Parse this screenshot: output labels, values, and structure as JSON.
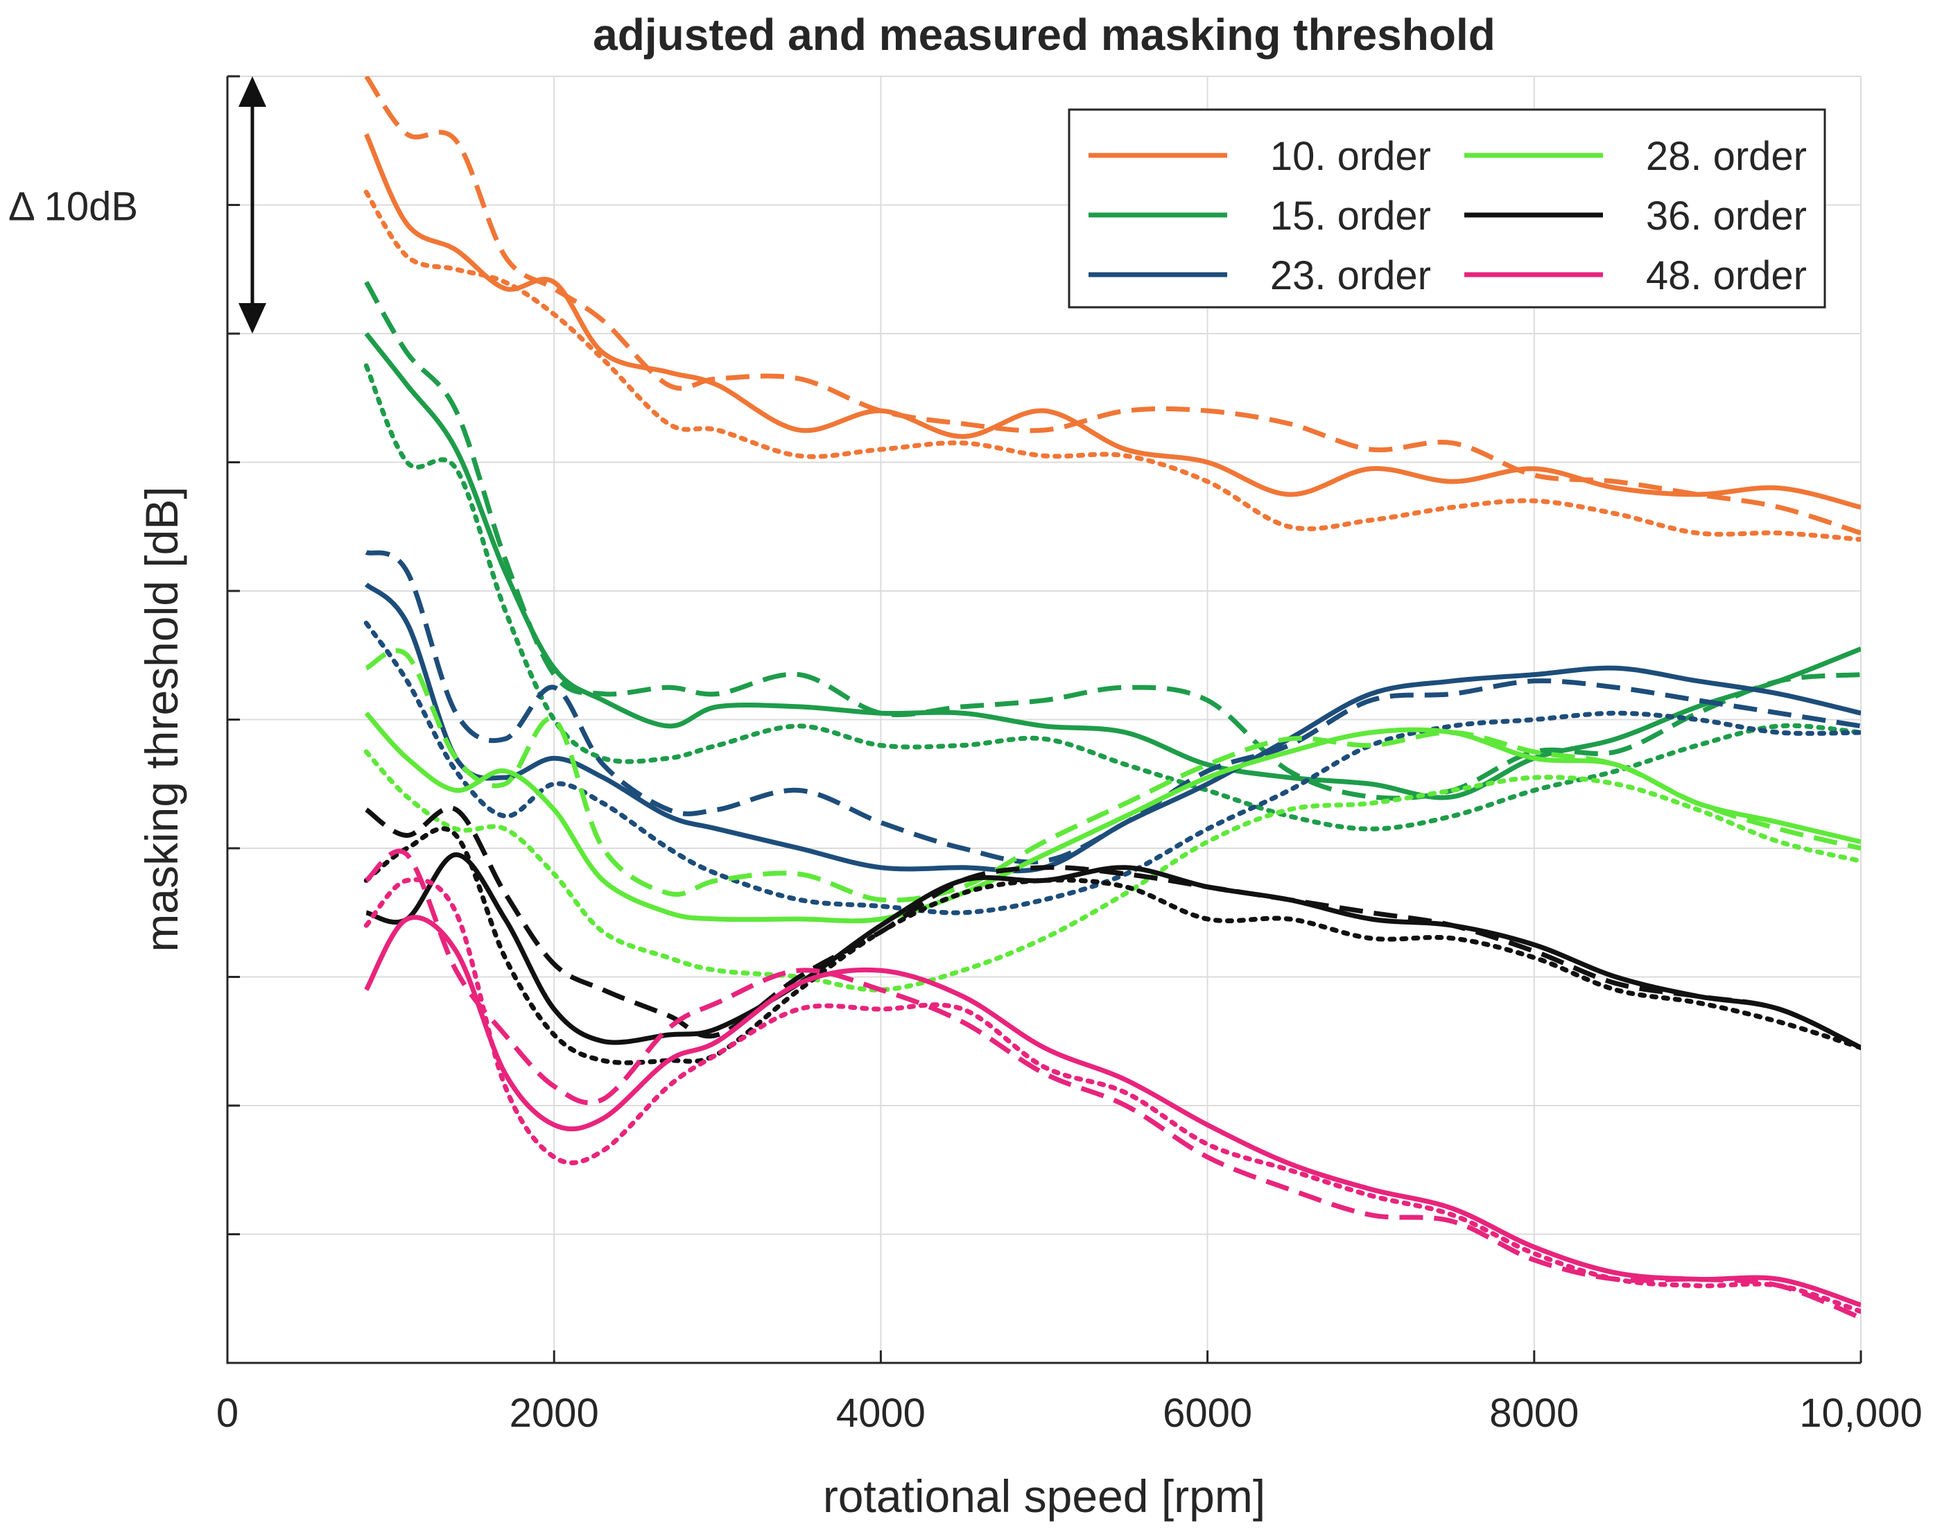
{
  "chart_data": {
    "type": "line",
    "title": "adjusted and measured masking threshold",
    "xlabel": "rotational speed [rpm]",
    "ylabel": "masking threshold [dB]",
    "xlim": [
      0,
      10000
    ],
    "ylim": [
      0,
      100
    ],
    "xticks": [
      0,
      2000,
      4000,
      6000,
      8000,
      10000
    ],
    "xtick_labels": [
      "0",
      "2000",
      "4000",
      "6000",
      "8000",
      "10,000"
    ],
    "yticks": [
      0,
      10,
      20,
      30,
      40,
      50,
      60,
      70,
      80,
      90,
      100
    ],
    "ytick_labels": [],
    "grid": true,
    "legend_position": "top-right",
    "annotation": {
      "label": "Δ 10dB",
      "from": 80,
      "to": 100
    },
    "line_styles": [
      "solid",
      "dashed",
      "dotted"
    ],
    "x": [
      850,
      1100,
      1400,
      1700,
      2000,
      2300,
      2700,
      3000,
      3500,
      4000,
      4500,
      5000,
      5500,
      6000,
      6500,
      7000,
      7500,
      8000,
      8500,
      9000,
      9500,
      10000
    ],
    "series": [
      {
        "name": "10. order",
        "color": "#f07636",
        "variants": [
          [
            95.5,
            88.5,
            86.5,
            83.5,
            84.0,
            78.5,
            77.0,
            76.0,
            72.5,
            74.0,
            72.0,
            74.0,
            71.0,
            70.0,
            67.5,
            69.5,
            68.5,
            69.5,
            68.0,
            67.5,
            68.0,
            66.5
          ],
          [
            100.0,
            95.5,
            95.0,
            86.0,
            83.5,
            81.0,
            76.0,
            76.5,
            76.5,
            74.0,
            73.0,
            72.5,
            74.0,
            74.0,
            73.0,
            71.0,
            71.5,
            69.0,
            68.5,
            67.5,
            66.5,
            64.5
          ],
          [
            91.0,
            86.0,
            85.0,
            84.0,
            81.5,
            78.0,
            73.0,
            72.5,
            70.5,
            71.0,
            71.5,
            70.5,
            70.5,
            68.5,
            65.0,
            65.5,
            66.5,
            67.0,
            66.0,
            64.5,
            64.5,
            64.0
          ]
        ]
      },
      {
        "name": "15. order",
        "color": "#1e9c4a",
        "variants": [
          [
            80.0,
            76.0,
            71.0,
            61.5,
            54.0,
            51.5,
            49.5,
            51.0,
            51.0,
            50.5,
            50.5,
            49.5,
            49.0,
            46.5,
            45.5,
            45.0,
            44.0,
            47.0,
            48.5,
            51.0,
            53.0,
            55.5
          ],
          [
            84.0,
            78.5,
            74.0,
            62.5,
            53.5,
            52.0,
            52.5,
            52.0,
            53.5,
            50.5,
            51.0,
            51.5,
            52.5,
            51.5,
            46.0,
            44.0,
            44.5,
            47.5,
            47.5,
            50.5,
            53.0,
            53.5
          ],
          [
            77.5,
            70.0,
            69.5,
            58.5,
            50.0,
            47.0,
            47.0,
            48.0,
            49.5,
            48.0,
            48.0,
            48.5,
            46.5,
            44.5,
            42.5,
            41.5,
            42.5,
            44.5,
            46.0,
            48.0,
            49.5,
            49.0
          ]
        ]
      },
      {
        "name": "23. order",
        "color": "#1d4d7a",
        "variants": [
          [
            60.5,
            57.5,
            47.0,
            45.5,
            47.0,
            45.5,
            42.5,
            41.5,
            40.0,
            38.5,
            38.5,
            38.5,
            42.0,
            45.0,
            48.5,
            52.0,
            53.0,
            53.5,
            54.0,
            53.0,
            52.0,
            50.5
          ],
          [
            63.0,
            61.5,
            50.5,
            48.5,
            52.5,
            46.5,
            43.0,
            43.0,
            44.5,
            42.0,
            40.0,
            39.0,
            42.0,
            46.0,
            48.0,
            51.5,
            52.0,
            53.0,
            52.5,
            51.5,
            50.5,
            49.5
          ],
          [
            57.5,
            53.0,
            46.0,
            42.5,
            45.0,
            43.5,
            40.0,
            38.0,
            36.0,
            35.5,
            35.0,
            36.0,
            38.0,
            41.5,
            44.5,
            48.0,
            49.5,
            50.0,
            50.5,
            50.0,
            49.0,
            49.0
          ]
        ]
      },
      {
        "name": "28. order",
        "color": "#5fe83a",
        "variants": [
          [
            50.5,
            47.0,
            44.5,
            46.0,
            43.0,
            37.5,
            35.0,
            34.5,
            34.5,
            34.5,
            36.5,
            39.5,
            42.5,
            45.5,
            47.5,
            49.0,
            49.0,
            47.0,
            46.5,
            43.5,
            42.0,
            40.5
          ],
          [
            54.0,
            55.0,
            47.0,
            45.0,
            50.0,
            40.0,
            36.5,
            37.5,
            38.0,
            36.0,
            37.0,
            40.5,
            43.5,
            46.5,
            48.5,
            48.0,
            49.0,
            47.5,
            46.5,
            43.5,
            41.5,
            40.0
          ],
          [
            47.5,
            44.0,
            41.5,
            41.5,
            38.0,
            33.5,
            31.5,
            30.5,
            30.0,
            29.0,
            30.5,
            33.0,
            36.5,
            40.5,
            43.0,
            43.5,
            44.5,
            45.5,
            45.0,
            43.0,
            40.5,
            39.0
          ]
        ]
      },
      {
        "name": "36. order",
        "color": "#111111",
        "variants": [
          [
            35.0,
            34.5,
            39.5,
            34.5,
            27.5,
            25.0,
            25.5,
            26.0,
            29.5,
            34.0,
            37.5,
            37.5,
            38.5,
            37.0,
            36.0,
            34.5,
            34.0,
            32.5,
            30.0,
            28.5,
            27.5,
            24.5
          ],
          [
            43.0,
            41.0,
            43.0,
            36.5,
            31.0,
            29.0,
            27.0,
            25.5,
            30.0,
            33.5,
            37.5,
            38.5,
            38.0,
            37.0,
            36.0,
            35.0,
            34.0,
            32.0,
            29.5,
            28.5,
            27.5,
            24.5
          ],
          [
            37.5,
            40.0,
            41.0,
            31.5,
            25.5,
            23.5,
            23.5,
            24.0,
            29.0,
            33.5,
            36.5,
            37.5,
            37.0,
            34.5,
            34.5,
            33.0,
            33.0,
            31.5,
            29.0,
            28.0,
            26.5,
            24.5
          ]
        ]
      },
      {
        "name": "48. order",
        "color": "#e8247c",
        "variants": [
          [
            29.0,
            34.5,
            32.0,
            22.5,
            18.5,
            19.0,
            23.5,
            25.0,
            29.5,
            30.5,
            28.5,
            24.5,
            22.0,
            18.5,
            15.5,
            13.5,
            12.0,
            9.0,
            7.0,
            6.5,
            6.5,
            4.5
          ],
          [
            37.5,
            39.5,
            30.5,
            25.5,
            21.5,
            20.5,
            26.0,
            28.0,
            30.5,
            29.0,
            26.5,
            22.5,
            20.0,
            16.0,
            13.5,
            11.5,
            11.0,
            8.0,
            6.5,
            6.5,
            6.0,
            3.5
          ],
          [
            34.0,
            37.5,
            35.0,
            21.5,
            16.0,
            16.5,
            21.5,
            24.0,
            27.5,
            27.5,
            27.5,
            23.0,
            21.0,
            17.0,
            15.0,
            13.0,
            11.5,
            8.5,
            6.5,
            6.0,
            6.0,
            4.0
          ]
        ]
      }
    ]
  }
}
